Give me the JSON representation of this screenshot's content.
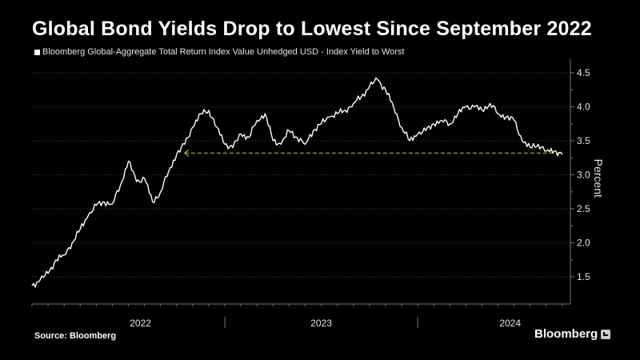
{
  "chart_data": {
    "type": "line",
    "title": "Global Bond Yields Drop to Lowest Since September 2022",
    "legend": [
      "Bloomberg Global-Aggregate Total Return Index Value Unhedged USD - Index Yield to Worst"
    ],
    "ylabel": "Percent",
    "ylim": [
      1.1,
      4.7
    ],
    "yticks": [
      1.5,
      2.0,
      2.5,
      3.0,
      3.5,
      4.0,
      4.5
    ],
    "ytick_labels": [
      "1.5",
      "2.0",
      "2.5",
      "3.0",
      "3.5",
      "4.0",
      "4.5"
    ],
    "xlim": [
      0,
      33.5
    ],
    "x_category_labels": [
      {
        "label": "2022",
        "center": 6.75
      },
      {
        "label": "2023",
        "center": 18
      },
      {
        "label": "2024",
        "center": 29.75
      }
    ],
    "x_separators": [
      12,
      24
    ],
    "series": [
      {
        "name": "Index Yield to Worst",
        "x": [
          0,
          0.5,
          1,
          1.5,
          2,
          2.5,
          3,
          3.5,
          4,
          4.5,
          5,
          5.5,
          6,
          6.5,
          7,
          7.5,
          8,
          8.5,
          9,
          9.5,
          10,
          10.5,
          11,
          11.5,
          12,
          12.5,
          13,
          13.5,
          14,
          14.5,
          15,
          15.5,
          16,
          16.5,
          17,
          17.5,
          18,
          18.5,
          19,
          19.5,
          20,
          20.5,
          21,
          21.5,
          22,
          22.5,
          23,
          23.5,
          24,
          24.5,
          25,
          25.5,
          26,
          26.5,
          27,
          27.5,
          28,
          28.5,
          29,
          29.5,
          30,
          30.5,
          31,
          31.5,
          32,
          32.5,
          33
        ],
        "values": [
          1.37,
          1.45,
          1.55,
          1.75,
          1.82,
          2.0,
          2.2,
          2.4,
          2.55,
          2.6,
          2.57,
          2.85,
          3.2,
          2.9,
          2.95,
          2.6,
          2.75,
          3.05,
          3.3,
          3.45,
          3.7,
          3.9,
          3.95,
          3.7,
          3.45,
          3.4,
          3.6,
          3.55,
          3.8,
          3.9,
          3.5,
          3.45,
          3.65,
          3.55,
          3.45,
          3.65,
          3.75,
          3.85,
          3.9,
          3.95,
          4.05,
          4.15,
          4.3,
          4.4,
          4.25,
          4.0,
          3.7,
          3.5,
          3.6,
          3.65,
          3.75,
          3.8,
          3.75,
          3.9,
          4.0,
          4.0,
          3.95,
          4.05,
          3.9,
          3.85,
          3.8,
          3.5,
          3.4,
          3.45,
          3.35,
          3.35,
          3.3
        ]
      }
    ],
    "reference_line": {
      "value": 3.32,
      "from_x": 9.5,
      "to_x": 33,
      "style": "dashed",
      "color": "#8ccc3c"
    },
    "colors": {
      "line": "#ffffff",
      "grid": "#3a3a3a",
      "axis": "#777777",
      "reference": "#8ccc3c"
    }
  },
  "source_label": "Source: Bloomberg",
  "brand_label": "Bloomberg"
}
